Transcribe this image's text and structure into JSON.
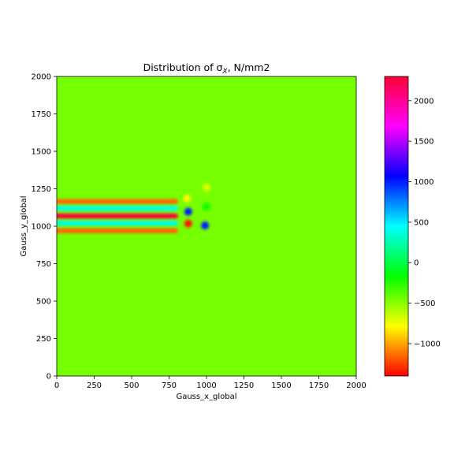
{
  "chart_data": {
    "type": "heatmap",
    "title": "Distribution of σ",
    "title_subscript": "X",
    "title_suffix": ", N/mm2",
    "xlabel": "Gauss_x_global",
    "ylabel": "Gauss_y_global",
    "xlim": [
      0,
      2000
    ],
    "ylim": [
      0,
      2000
    ],
    "x_ticks": [
      0,
      250,
      500,
      750,
      1000,
      1250,
      1500,
      1750,
      2000
    ],
    "y_ticks": [
      0,
      250,
      500,
      750,
      1000,
      1250,
      1500,
      1750,
      2000
    ],
    "colorbar": {
      "colormap": "hsv",
      "vmin": -1400,
      "vmax": 2300,
      "ticks": [
        {
          "value": 2000,
          "label": "2000"
        },
        {
          "value": 1500,
          "label": "1500"
        },
        {
          "value": 1000,
          "label": "1000"
        },
        {
          "value": 500,
          "label": "500"
        },
        {
          "value": 0,
          "label": "0"
        },
        {
          "value": -500,
          "label": "−500"
        },
        {
          "value": -1000,
          "label": "−1000"
        }
      ]
    },
    "background_value": -450,
    "features": [
      {
        "kind": "hband",
        "x": [
          0,
          810
        ],
        "y": 1165,
        "value": -1150
      },
      {
        "kind": "hband",
        "x": [
          0,
          810
        ],
        "y": 1120,
        "value": 400
      },
      {
        "kind": "hband",
        "x": [
          0,
          810
        ],
        "y": 1068,
        "value": 2150
      },
      {
        "kind": "hband",
        "x": [
          0,
          810
        ],
        "y": 1020,
        "value": 400
      },
      {
        "kind": "hband",
        "x": [
          0,
          810
        ],
        "y": 970,
        "value": -1150
      },
      {
        "kind": "spot",
        "x": 878,
        "y": 1018,
        "value": -1350
      },
      {
        "kind": "spot",
        "x": 878,
        "y": 1097,
        "value": 1000
      },
      {
        "kind": "spot",
        "x": 990,
        "y": 1005,
        "value": 1000
      },
      {
        "kind": "spot",
        "x": 1000,
        "y": 1260,
        "value": -700
      },
      {
        "kind": "spot",
        "x": 870,
        "y": 1185,
        "value": -800
      },
      {
        "kind": "spot",
        "x": 1000,
        "y": 1130,
        "value": -200
      }
    ]
  }
}
